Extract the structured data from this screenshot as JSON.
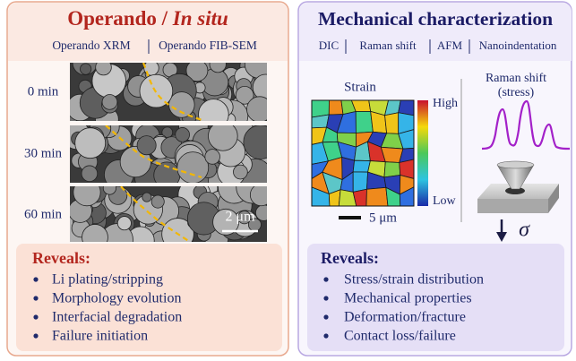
{
  "left": {
    "title": "Operando / ",
    "title_italic": "In situ",
    "subtitle": [
      "Operando XRM",
      "Operando FIB-SEM"
    ],
    "times": [
      "0 min",
      "30 min",
      "60 min"
    ],
    "scale_bar": "2 μm",
    "reveals": {
      "title": "Reveals:",
      "items": [
        "Li plating/stripping",
        "Morphology evolution",
        "Interfacial degradation",
        "Failure initiation"
      ]
    }
  },
  "right": {
    "title": "Mechanical characterization",
    "subtitle": [
      "DIC",
      "Raman shift",
      "AFM",
      "Nanoindentation"
    ],
    "strain": {
      "title": "Strain",
      "high": "High",
      "low": "Low",
      "scale_bar": "5 μm"
    },
    "raman": {
      "title": "Raman shift",
      "subtitle": "(stress)",
      "sigma": "σ"
    },
    "reveals": {
      "title": "Reveals:",
      "items": [
        "Stress/strain distribution",
        "Mechanical properties",
        "Deformation/fracture",
        "Contact loss/failure"
      ]
    }
  }
}
